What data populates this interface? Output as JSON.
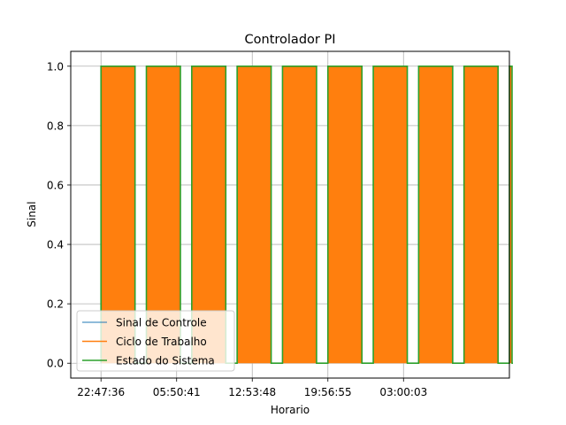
{
  "chart_data": {
    "type": "line",
    "title": "Controlador PI",
    "xlabel": "Horario",
    "ylabel": "Sinal",
    "xlim": [
      -0.08,
      1.08
    ],
    "ylim": [
      -0.05,
      1.05
    ],
    "yticks": [
      0.0,
      0.2,
      0.4,
      0.6,
      0.8,
      1.0
    ],
    "ytick_labels": [
      "0.0",
      "0.2",
      "0.4",
      "0.6",
      "0.8",
      "1.0"
    ],
    "xticks": [
      0.0,
      0.2,
      0.4,
      0.6,
      0.8
    ],
    "xtick_labels": [
      "22:47:36",
      "05:50:41",
      "12:53:48",
      "19:56:55",
      "03:00:03"
    ],
    "grid": true,
    "legend": "lower-left",
    "cycles": [
      {
        "on": 0.0,
        "off": 0.09
      },
      {
        "on": 0.12,
        "off": 0.21
      },
      {
        "on": 0.24,
        "off": 0.33
      },
      {
        "on": 0.36,
        "off": 0.45
      },
      {
        "on": 0.48,
        "off": 0.57
      },
      {
        "on": 0.6,
        "off": 0.69
      },
      {
        "on": 0.72,
        "off": 0.81
      },
      {
        "on": 0.84,
        "off": 0.93
      },
      {
        "on": 0.96,
        "off": 1.05
      },
      {
        "on": 1.08,
        "off": 1.087
      }
    ],
    "series": [
      {
        "name": "Sinal de Controle",
        "color": "#1f77b4"
      },
      {
        "name": "Ciclo de Trabalho",
        "color": "#ff7f0e"
      },
      {
        "name": "Estado do Sistema",
        "color": "#2ca02c"
      }
    ]
  }
}
